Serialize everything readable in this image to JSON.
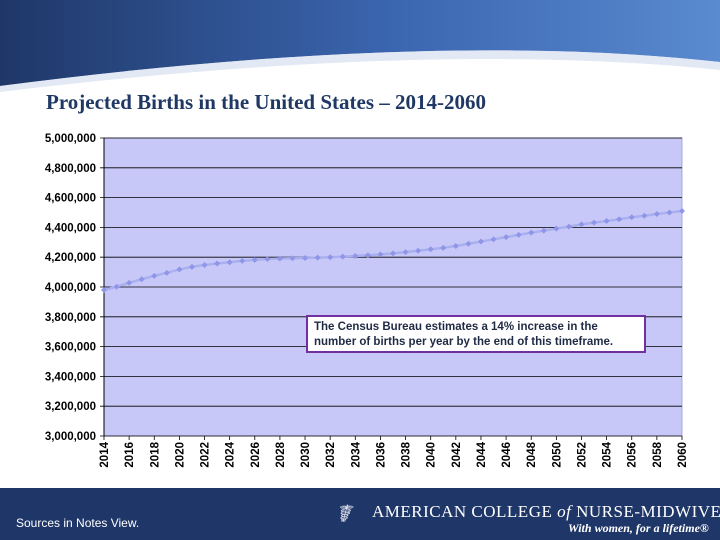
{
  "slide": {
    "title": "Projected Births in the United States – 2014-2060"
  },
  "chart_data": {
    "type": "line",
    "title": "Projected Births in the United States – 2014-2060",
    "xlabel": "",
    "ylabel": "",
    "ylim": [
      3000000,
      5000000
    ],
    "y_ticks": [
      3000000,
      3200000,
      3400000,
      3600000,
      3800000,
      4000000,
      4200000,
      4400000,
      4600000,
      4800000,
      5000000
    ],
    "y_tick_labels": [
      "3,000,000",
      "3,200,000",
      "3,400,000",
      "3,600,000",
      "3,800,000",
      "4,000,000",
      "4,200,000",
      "4,400,000",
      "4,600,000",
      "4,800,000",
      "5,000,000"
    ],
    "x_tick_labels": [
      "2014",
      "2016",
      "2018",
      "2020",
      "2022",
      "2024",
      "2026",
      "2028",
      "2030",
      "2032",
      "2034",
      "2036",
      "2038",
      "2040",
      "2042",
      "2044",
      "2046",
      "2048",
      "2050",
      "2052",
      "2054",
      "2056",
      "2058",
      "2060"
    ],
    "x": [
      2014,
      2015,
      2016,
      2017,
      2018,
      2019,
      2020,
      2021,
      2022,
      2023,
      2024,
      2025,
      2026,
      2027,
      2028,
      2029,
      2030,
      2031,
      2032,
      2033,
      2034,
      2035,
      2036,
      2037,
      2038,
      2039,
      2040,
      2041,
      2042,
      2043,
      2044,
      2045,
      2046,
      2047,
      2048,
      2049,
      2050,
      2051,
      2052,
      2053,
      2054,
      2055,
      2056,
      2057,
      2058,
      2059,
      2060
    ],
    "series": [
      {
        "name": "Projected Births",
        "values": [
          3980000,
          4002000,
          4028000,
          4052000,
          4075000,
          4095000,
          4118000,
          4135000,
          4148000,
          4158000,
          4166000,
          4175000,
          4182000,
          4188000,
          4191000,
          4193000,
          4195000,
          4197000,
          4200000,
          4204000,
          4208000,
          4213000,
          4219000,
          4226000,
          4234000,
          4243000,
          4253000,
          4263000,
          4275000,
          4290000,
          4305000,
          4320000,
          4335000,
          4350000,
          4365000,
          4378000,
          4392000,
          4405000,
          4420000,
          4432000,
          4443000,
          4455000,
          4468000,
          4478000,
          4490000,
          4500000,
          4510000
        ]
      }
    ],
    "annotation": "The Census Bureau estimates a 14% increase in the number of births per year by the end of this timeframe.",
    "grid": true,
    "legend": "none",
    "colors": {
      "plot_area": "#c8c8f8",
      "line": "#aab0ee",
      "marker": "#8f96e8",
      "gridline": "#000000",
      "annotation_border": "#7030a0"
    }
  },
  "footer": {
    "sources": "Sources in Notes View.",
    "logo_mark": "☤",
    "logo_name_part1": "AMERICAN COLLEGE ",
    "logo_name_of": "of",
    "logo_name_part2": " NURSE-MIDWIVES",
    "tagline": "With women, for a lifetime®"
  }
}
